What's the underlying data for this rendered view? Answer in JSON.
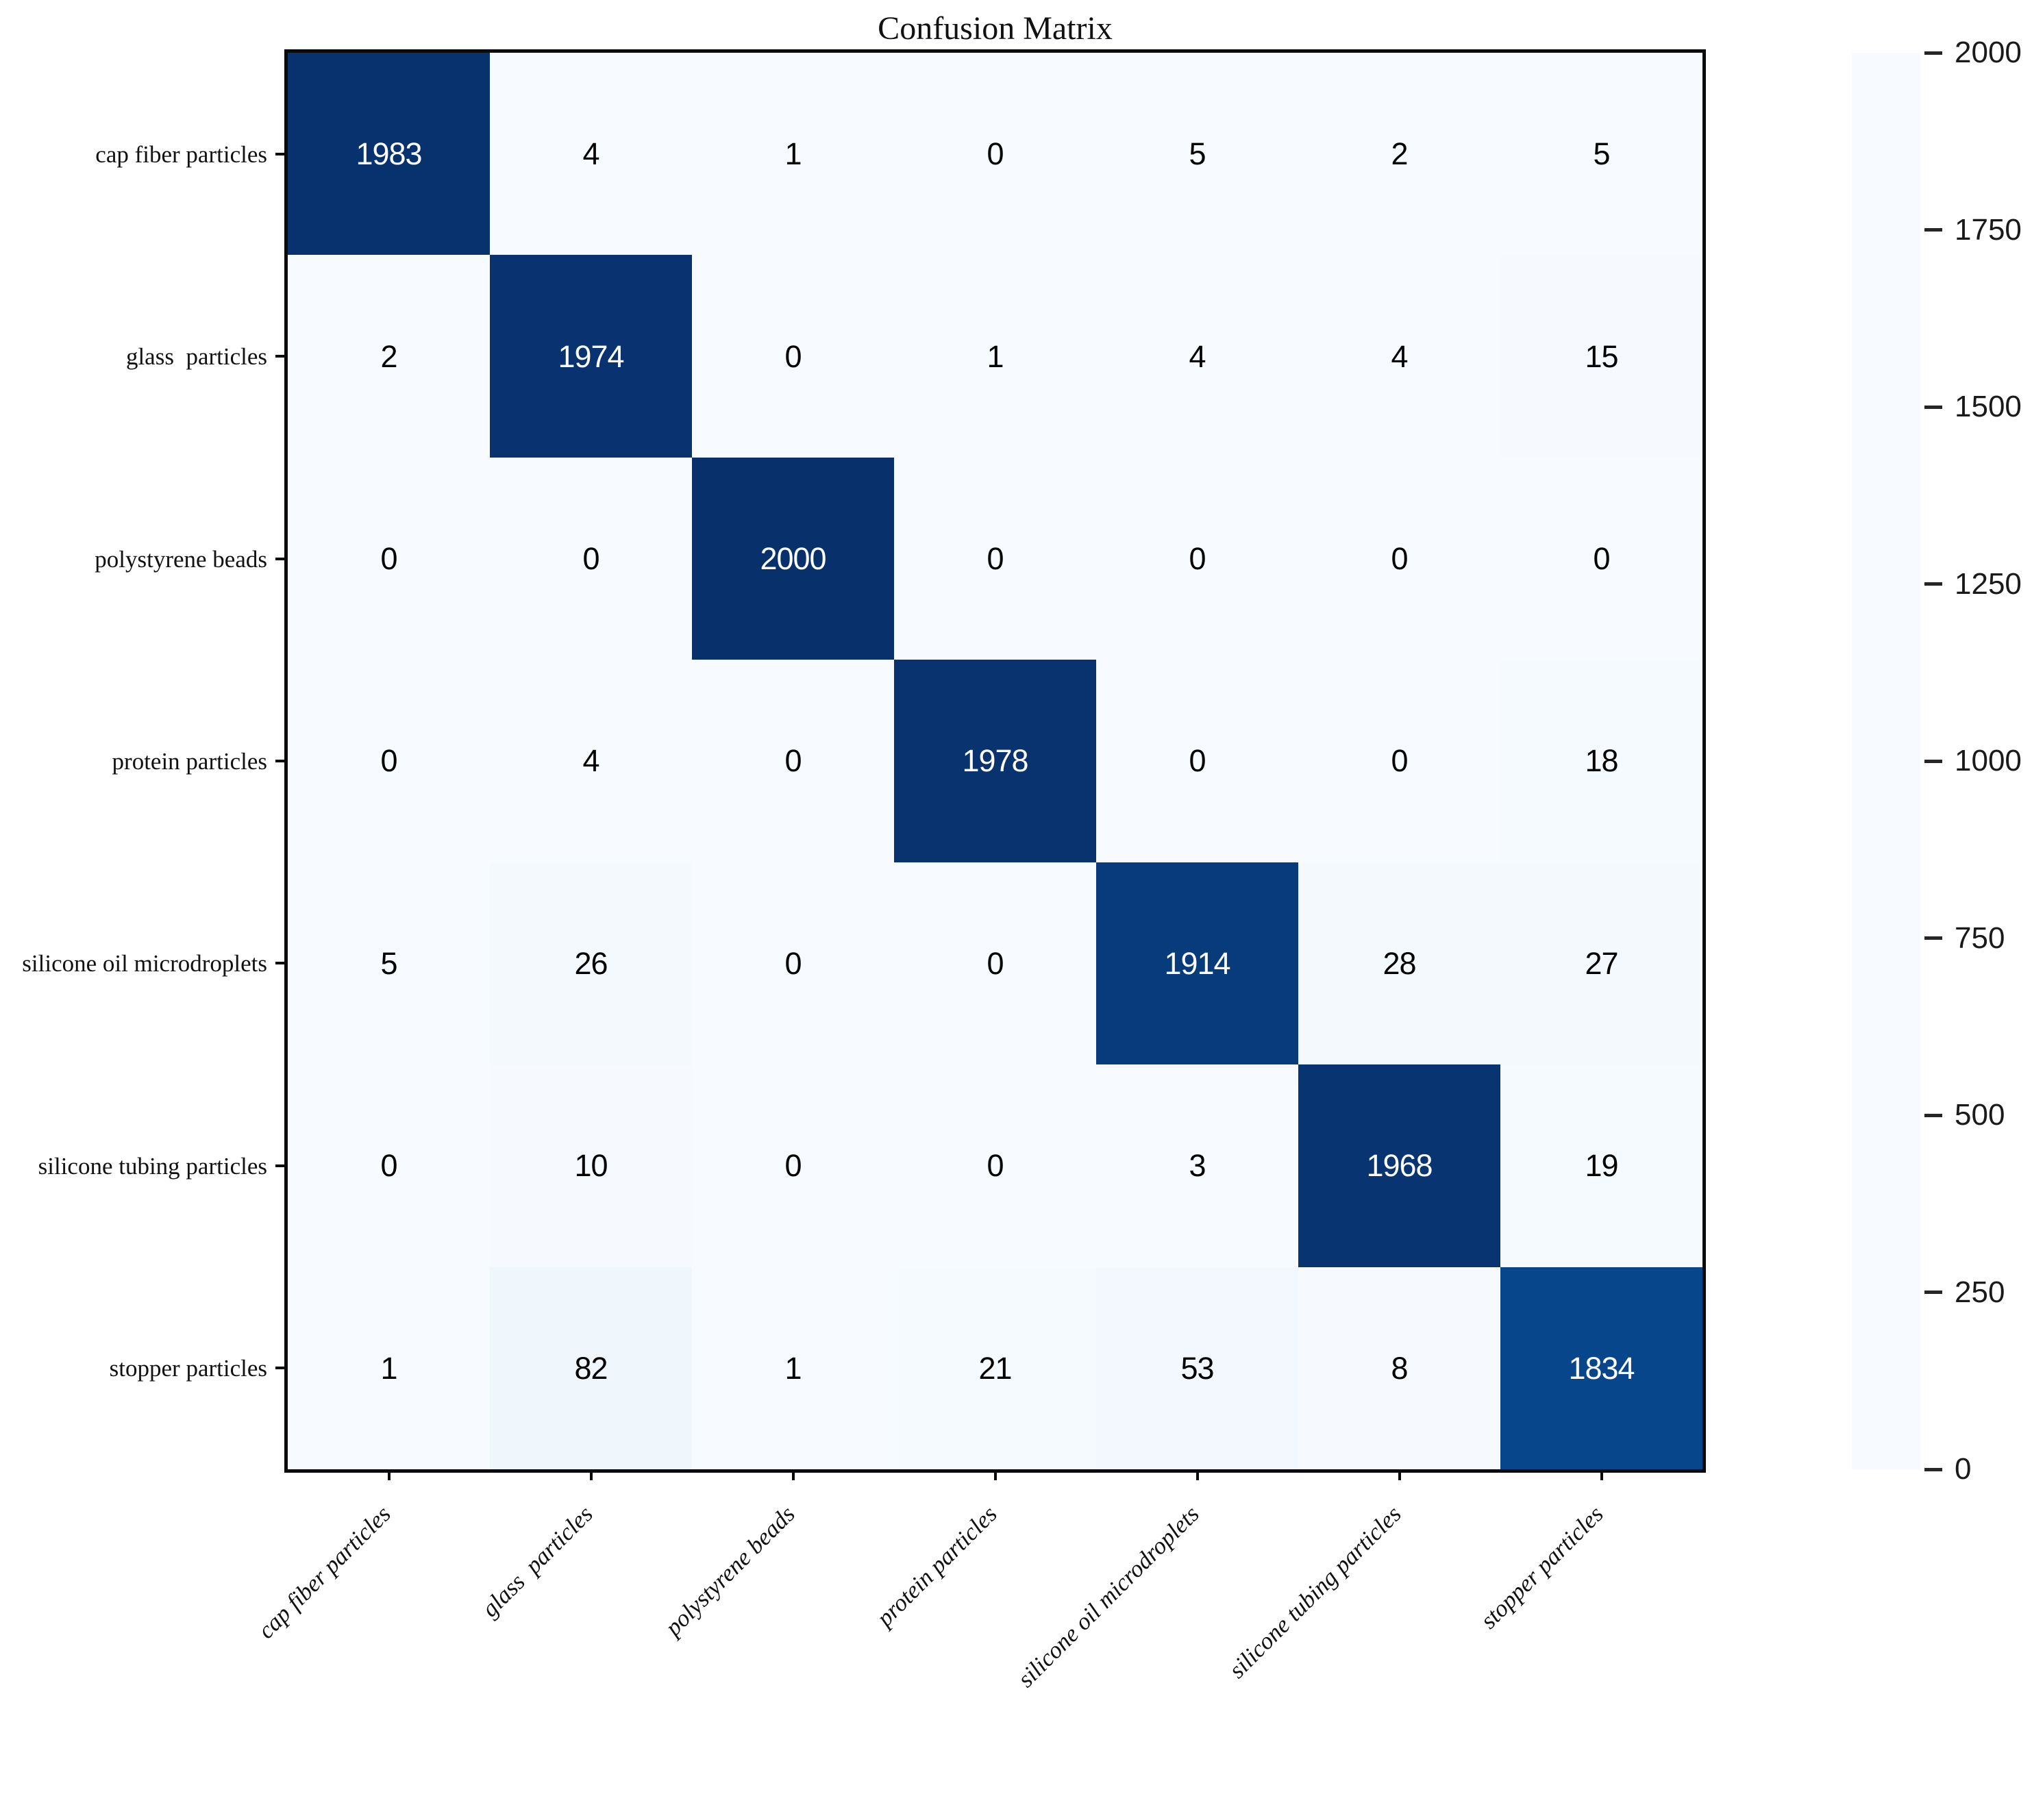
{
  "title": "Confusion Matrix",
  "chart_data": {
    "type": "heatmap",
    "title": "Confusion Matrix",
    "x_categories": [
      "cap fiber particles",
      "glass  particles",
      "polystyrene beads",
      "protein particles",
      "silicone oil microdroplets",
      "silicone tubing particles",
      "stopper particles"
    ],
    "y_categories": [
      "cap fiber particles",
      "glass  particles",
      "polystyrene beads",
      "protein particles",
      "silicone oil microdroplets",
      "silicone tubing particles",
      "stopper particles"
    ],
    "matrix": [
      [
        1983,
        4,
        1,
        0,
        5,
        2,
        5
      ],
      [
        2,
        1974,
        0,
        1,
        4,
        4,
        15
      ],
      [
        0,
        0,
        2000,
        0,
        0,
        0,
        0
      ],
      [
        0,
        4,
        0,
        1978,
        0,
        0,
        18
      ],
      [
        5,
        26,
        0,
        0,
        1914,
        28,
        27
      ],
      [
        0,
        10,
        0,
        0,
        3,
        1968,
        19
      ],
      [
        1,
        82,
        1,
        21,
        53,
        8,
        1834
      ]
    ],
    "colorbar": {
      "min": 0,
      "max": 2000,
      "ticks": [
        0,
        250,
        500,
        750,
        1000,
        1250,
        1500,
        1750,
        2000
      ]
    },
    "colormap": {
      "name": "Blues",
      "stops": [
        {
          "pos": 0.0,
          "color": "#f7fbff"
        },
        {
          "pos": 0.125,
          "color": "#deebf7"
        },
        {
          "pos": 0.25,
          "color": "#c6dbef"
        },
        {
          "pos": 0.375,
          "color": "#9ecae1"
        },
        {
          "pos": 0.5,
          "color": "#6baed6"
        },
        {
          "pos": 0.625,
          "color": "#4292c6"
        },
        {
          "pos": 0.75,
          "color": "#2171b5"
        },
        {
          "pos": 0.875,
          "color": "#08519c"
        },
        {
          "pos": 1.0,
          "color": "#08306b"
        }
      ]
    },
    "text_color_threshold": 1000,
    "text_colors": {
      "light": "#ffffff",
      "dark": "#000000"
    },
    "grid": false,
    "legend_position": "right-colorbar"
  }
}
